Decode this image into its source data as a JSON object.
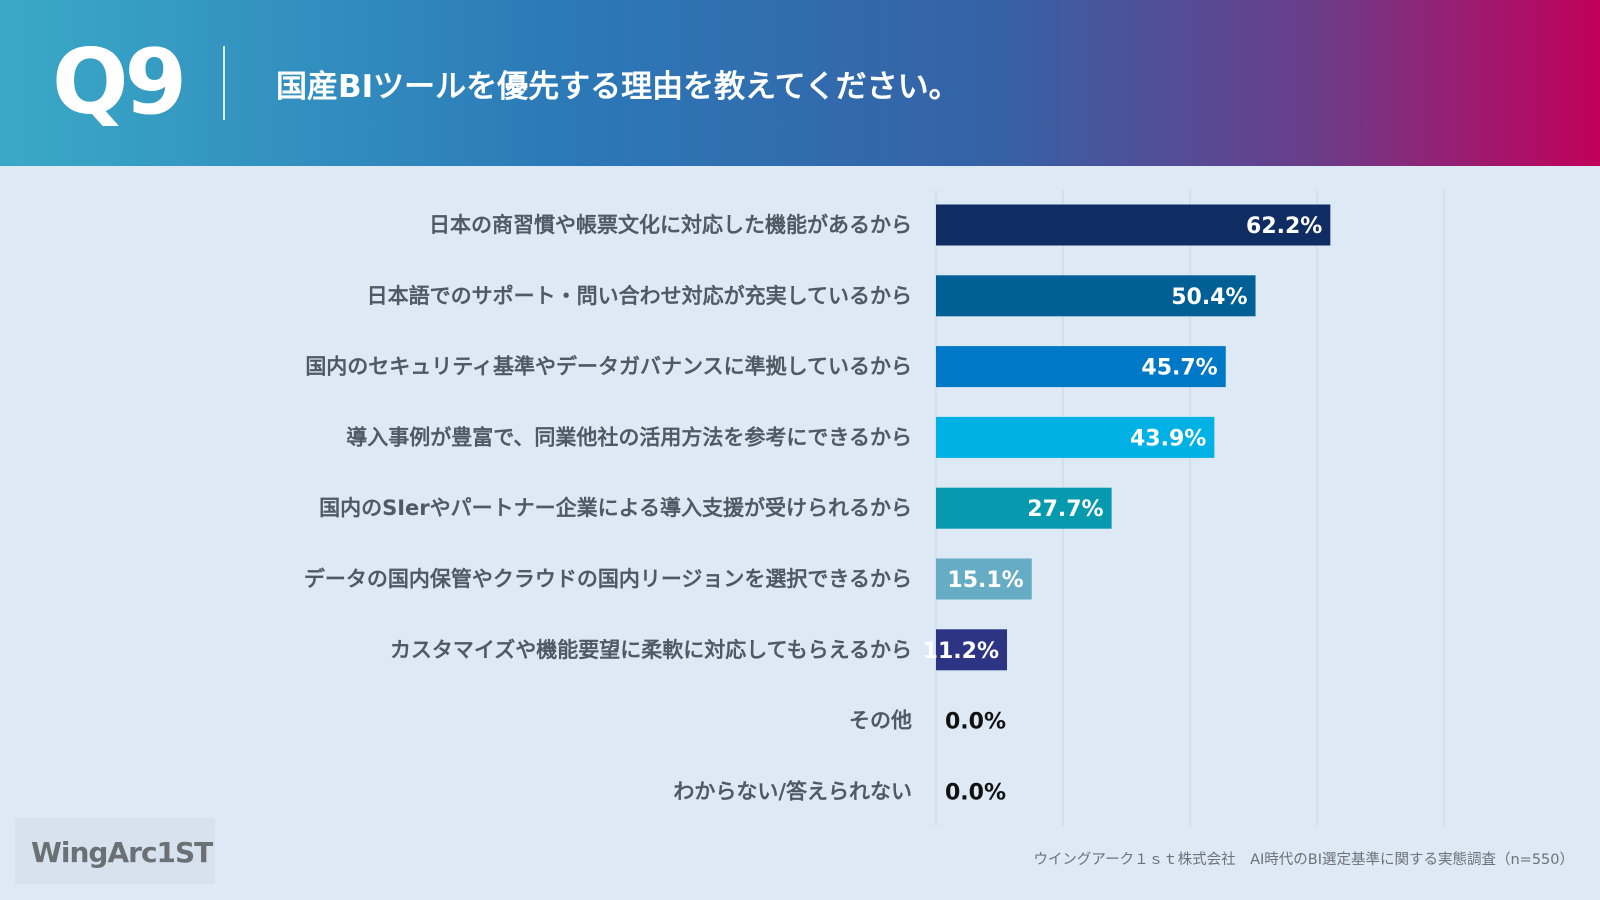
{
  "header": {
    "question_number": "Q9",
    "question_text": "国産BIツールを優先する理由を教えてください。"
  },
  "chart_data": {
    "type": "bar",
    "orientation": "horizontal",
    "categories": [
      "日本の商習慣や帳票文化に対応した機能があるから",
      "日本語でのサポート・問い合わせ対応が充実しているから",
      "国内のセキュリティ基準やデータガバナンスに準拠しているから",
      "導入事例が豊富で、同業他社の活用方法を参考にできるから",
      "国内のSIerやパートナー企業による導入支援が受けられるから",
      "データの国内保管やクラウドの国内リージョンを選択できるから",
      "カスタマイズや機能要望に柔軟に対応してもらえるから",
      "その他",
      "わからない/答えられない"
    ],
    "values": [
      62.2,
      50.4,
      45.7,
      43.9,
      27.7,
      15.1,
      11.2,
      0.0,
      0.0
    ],
    "value_labels": [
      "62.2%",
      "50.4%",
      "45.7%",
      "43.9%",
      "27.7%",
      "15.1%",
      "11.2%",
      "0.0%",
      "0.0%"
    ],
    "bar_colors": [
      "#0f2d63",
      "#005f94",
      "#0078c8",
      "#00b1e6",
      "#0799ad",
      "#67acc5",
      "#2e3484",
      "#000000",
      "#000000"
    ],
    "xlim": [
      0,
      100
    ],
    "grid": true,
    "legend": "none"
  },
  "logo": {
    "text": "WingArc1ST"
  },
  "footer": {
    "source": "ウイングアーク１ｓｔ株式会社　AI時代のBI選定基準に関する実態調査（n=550）"
  },
  "colors": {
    "background": "#dde9f5",
    "gridline": "#c9d6e2",
    "label_text": "#505a64",
    "value_text_inside": "#ffffff",
    "value_text_outside": "#111111"
  }
}
